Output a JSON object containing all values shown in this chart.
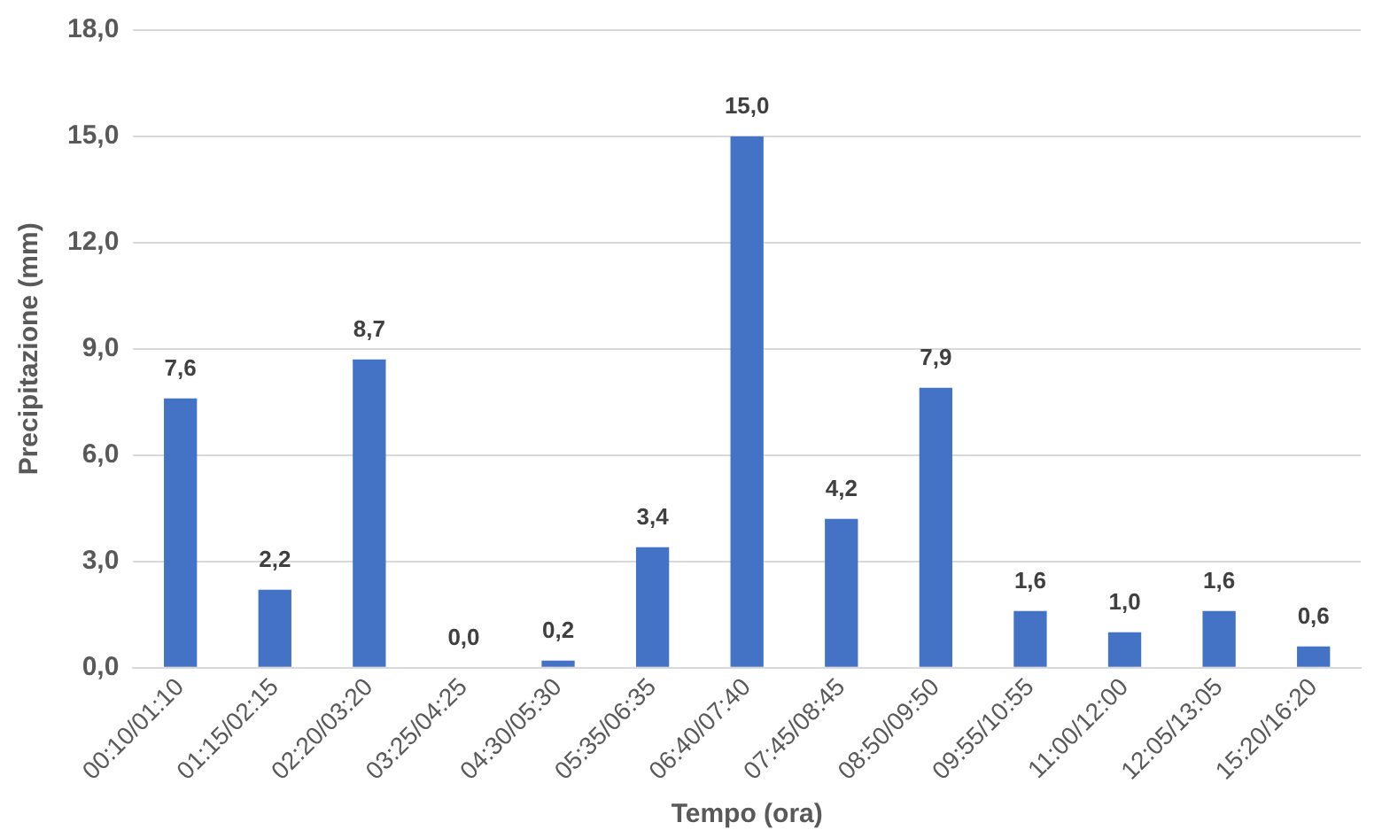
{
  "chart_data": {
    "type": "bar",
    "xlabel": "Tempo (ora)",
    "ylabel": "Precipitazione (mm)",
    "categories": [
      "00:10/01:10",
      "01:15/02:15",
      "02:20/03:20",
      "03:25/04:25",
      "04:30/05:30",
      "05:35/06:35",
      "06:40/07:40",
      "07:45/08:45",
      "08:50/09:50",
      "09:55/10:55",
      "11:00/12:00",
      "12:05/13:05",
      "15:20/16:20"
    ],
    "values": [
      7.6,
      2.2,
      8.7,
      0.0,
      0.2,
      3.4,
      15.0,
      4.2,
      7.9,
      1.6,
      1.0,
      1.6,
      0.6
    ],
    "value_labels": [
      "7,6",
      "2,2",
      "8,7",
      "0,0",
      "0,2",
      "3,4",
      "15,0",
      "4,2",
      "7,9",
      "1,6",
      "1,0",
      "1,6",
      "0,6"
    ],
    "color": "#4472c4",
    "ylim": [
      0,
      18
    ],
    "yticks": [
      {
        "value": 0,
        "label": "0,0"
      },
      {
        "value": 3,
        "label": "3,0"
      },
      {
        "value": 6,
        "label": "6,0"
      },
      {
        "value": 9,
        "label": "9,0"
      },
      {
        "value": 12,
        "label": "12,0"
      },
      {
        "value": 15,
        "label": "15,0"
      },
      {
        "value": 18,
        "label": "18,0"
      }
    ],
    "grid": "y",
    "legend": false
  }
}
